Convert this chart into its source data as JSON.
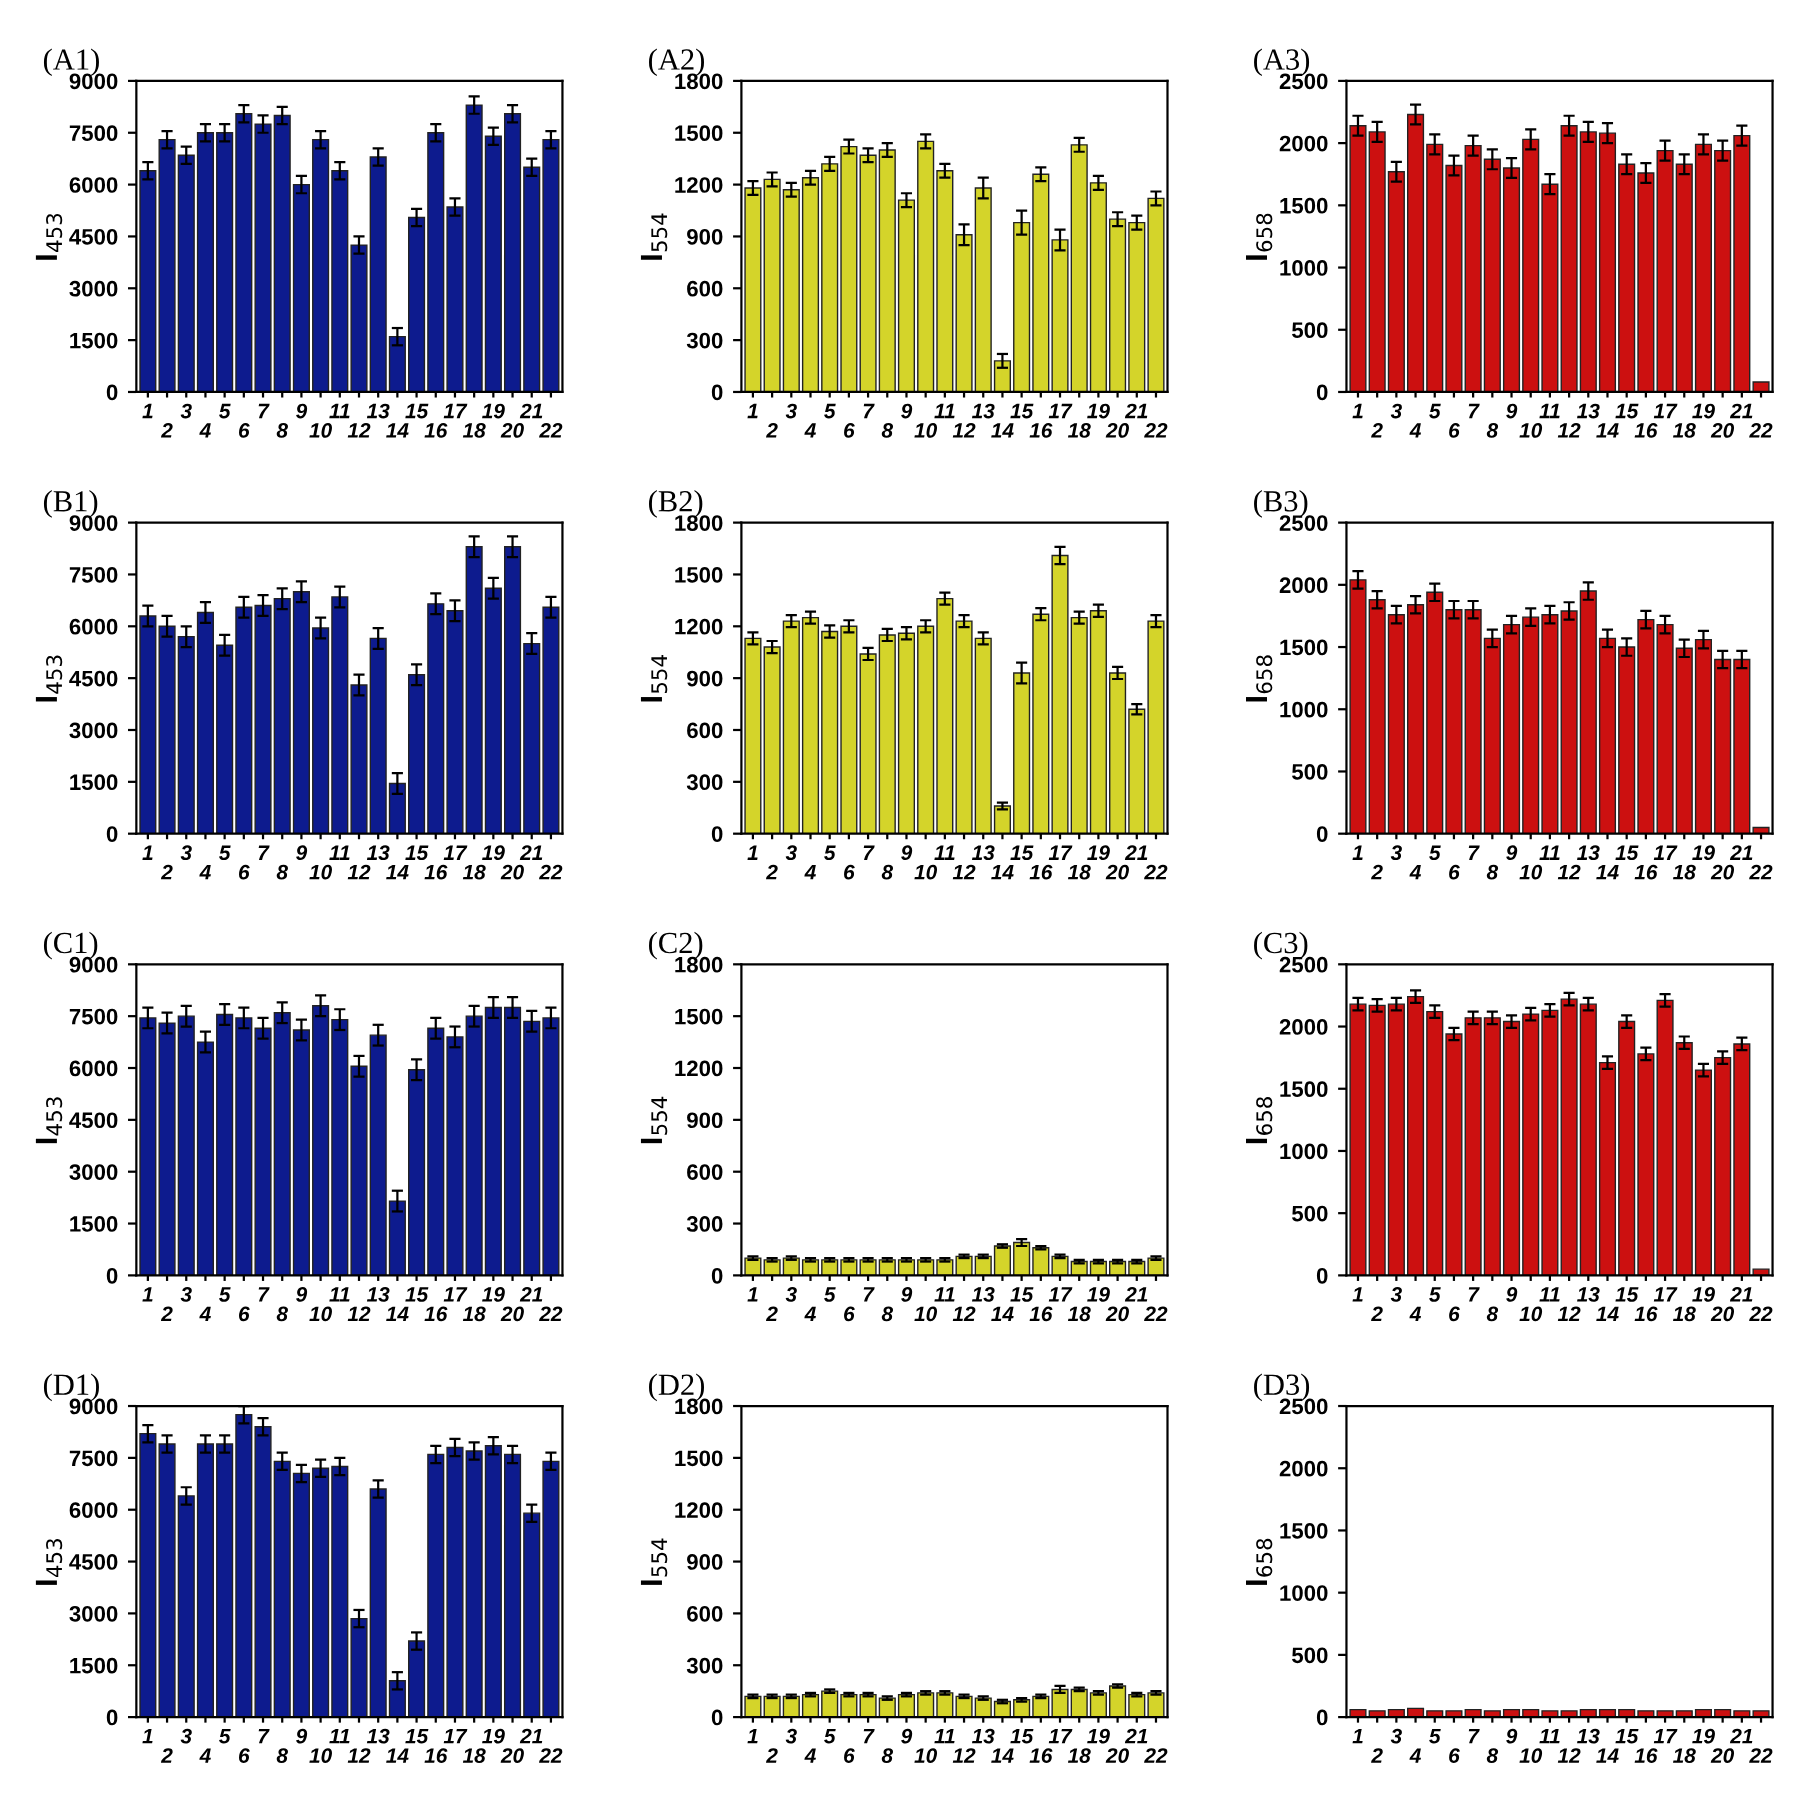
{
  "chart_data": [
    {
      "type": "bar",
      "title": "(A1)",
      "ylabel": "I$_{453}$",
      "categories": [
        "1",
        "2",
        "3",
        "4",
        "5",
        "6",
        "7",
        "8",
        "9",
        "10",
        "11",
        "12",
        "13",
        "14",
        "15",
        "16",
        "17",
        "18",
        "19",
        "20",
        "21",
        "22"
      ],
      "color": "#0d1b8e",
      "ylim": [
        0,
        9000
      ],
      "yticks": [
        0,
        1500,
        3000,
        4500,
        6000,
        7500,
        9000
      ],
      "grid": false,
      "legend": false,
      "values": [
        6400,
        7300,
        6850,
        7500,
        7500,
        8050,
        7750,
        8000,
        6000,
        7300,
        6400,
        4250,
        6800,
        1600,
        5050,
        7500,
        5350,
        8300,
        7400,
        8050,
        6500,
        7300
      ],
      "errors": [
        250,
        250,
        250,
        250,
        250,
        250,
        250,
        250,
        250,
        250,
        250,
        250,
        250,
        250,
        250,
        250,
        250,
        250,
        250,
        250,
        250,
        250
      ]
    },
    {
      "type": "bar",
      "title": "(A2)",
      "ylabel": "I$_{554}$",
      "categories": [
        "1",
        "2",
        "3",
        "4",
        "5",
        "6",
        "7",
        "8",
        "9",
        "10",
        "11",
        "12",
        "13",
        "14",
        "15",
        "16",
        "17",
        "18",
        "19",
        "20",
        "21",
        "22"
      ],
      "color": "#d4d42a",
      "ylim": [
        0,
        1800
      ],
      "yticks": [
        0,
        300,
        600,
        900,
        1200,
        1500,
        1800
      ],
      "grid": false,
      "legend": false,
      "values": [
        1180,
        1230,
        1170,
        1240,
        1320,
        1420,
        1370,
        1400,
        1110,
        1450,
        1280,
        910,
        1180,
        180,
        980,
        1260,
        880,
        1430,
        1210,
        1000,
        980,
        1120
      ],
      "errors": [
        40,
        40,
        40,
        40,
        40,
        40,
        40,
        40,
        40,
        40,
        40,
        60,
        60,
        40,
        70,
        40,
        60,
        40,
        40,
        40,
        40,
        40
      ]
    },
    {
      "type": "bar",
      "title": "(A3)",
      "ylabel": "I$_{658}$",
      "categories": [
        "1",
        "2",
        "3",
        "4",
        "5",
        "6",
        "7",
        "8",
        "9",
        "10",
        "11",
        "12",
        "13",
        "14",
        "15",
        "16",
        "17",
        "18",
        "19",
        "20",
        "21",
        "22"
      ],
      "color": "#cc1010",
      "ylim": [
        0,
        2500
      ],
      "yticks": [
        0,
        500,
        1000,
        1500,
        2000,
        2500
      ],
      "grid": false,
      "legend": false,
      "values": [
        2140,
        2090,
        1770,
        2230,
        1990,
        1820,
        1980,
        1870,
        1800,
        2030,
        1670,
        2140,
        2090,
        2080,
        1830,
        1760,
        1940,
        1830,
        1990,
        1940,
        2060,
        80
      ],
      "errors": [
        80,
        80,
        80,
        80,
        80,
        80,
        80,
        80,
        80,
        80,
        80,
        80,
        80,
        80,
        80,
        80,
        80,
        80,
        80,
        80,
        80,
        null
      ]
    },
    {
      "type": "bar",
      "title": "(B1)",
      "ylabel": "I$_{453}$",
      "categories": [
        "1",
        "2",
        "3",
        "4",
        "5",
        "6",
        "7",
        "8",
        "9",
        "10",
        "11",
        "12",
        "13",
        "14",
        "15",
        "16",
        "17",
        "18",
        "19",
        "20",
        "21",
        "22"
      ],
      "color": "#0d1b8e",
      "ylim": [
        0,
        9000
      ],
      "yticks": [
        0,
        1500,
        3000,
        4500,
        6000,
        7500,
        9000
      ],
      "grid": false,
      "legend": false,
      "values": [
        6300,
        6000,
        5700,
        6400,
        5450,
        6550,
        6600,
        6800,
        7000,
        5950,
        6850,
        4300,
        5650,
        1450,
        4600,
        6650,
        6450,
        8300,
        7100,
        8300,
        5500,
        6550
      ],
      "errors": [
        300,
        300,
        300,
        300,
        300,
        300,
        300,
        300,
        300,
        300,
        300,
        300,
        300,
        300,
        300,
        300,
        300,
        300,
        300,
        300,
        300,
        300
      ]
    },
    {
      "type": "bar",
      "title": "(B2)",
      "ylabel": "I$_{554}$",
      "categories": [
        "1",
        "2",
        "3",
        "4",
        "5",
        "6",
        "7",
        "8",
        "9",
        "10",
        "11",
        "12",
        "13",
        "14",
        "15",
        "16",
        "17",
        "18",
        "19",
        "20",
        "21",
        "22"
      ],
      "color": "#d4d42a",
      "ylim": [
        0,
        1800
      ],
      "yticks": [
        0,
        300,
        600,
        900,
        1200,
        1500,
        1800
      ],
      "grid": false,
      "legend": false,
      "values": [
        1130,
        1080,
        1230,
        1250,
        1170,
        1200,
        1040,
        1150,
        1160,
        1200,
        1360,
        1230,
        1130,
        160,
        930,
        1270,
        1610,
        1250,
        1290,
        930,
        720,
        1230
      ],
      "errors": [
        35,
        35,
        35,
        35,
        35,
        35,
        35,
        35,
        35,
        35,
        35,
        35,
        35,
        20,
        60,
        35,
        50,
        35,
        35,
        35,
        30,
        35
      ]
    },
    {
      "type": "bar",
      "title": "(B3)",
      "ylabel": "I$_{658}$",
      "categories": [
        "1",
        "2",
        "3",
        "4",
        "5",
        "6",
        "7",
        "8",
        "9",
        "10",
        "11",
        "12",
        "13",
        "14",
        "15",
        "16",
        "17",
        "18",
        "19",
        "20",
        "21",
        "22"
      ],
      "color": "#cc1010",
      "ylim": [
        0,
        2500
      ],
      "yticks": [
        0,
        500,
        1000,
        1500,
        2000,
        2500
      ],
      "grid": false,
      "legend": false,
      "values": [
        2040,
        1880,
        1760,
        1840,
        1940,
        1800,
        1800,
        1570,
        1680,
        1740,
        1760,
        1790,
        1950,
        1570,
        1500,
        1720,
        1680,
        1490,
        1560,
        1400,
        1400,
        50
      ],
      "errors": [
        70,
        70,
        70,
        70,
        70,
        70,
        70,
        70,
        70,
        70,
        70,
        70,
        70,
        70,
        70,
        70,
        70,
        70,
        70,
        70,
        70,
        null
      ]
    },
    {
      "type": "bar",
      "title": "(C1)",
      "ylabel": "I$_{453}$",
      "categories": [
        "1",
        "2",
        "3",
        "4",
        "5",
        "6",
        "7",
        "8",
        "9",
        "10",
        "11",
        "12",
        "13",
        "14",
        "15",
        "16",
        "17",
        "18",
        "19",
        "20",
        "21",
        "22"
      ],
      "color": "#0d1b8e",
      "ylim": [
        0,
        9000
      ],
      "yticks": [
        0,
        1500,
        3000,
        4500,
        6000,
        7500,
        9000
      ],
      "grid": false,
      "legend": false,
      "values": [
        7450,
        7300,
        7500,
        6750,
        7550,
        7450,
        7150,
        7600,
        7100,
        7800,
        7400,
        6050,
        6950,
        2150,
        5950,
        7150,
        6900,
        7500,
        7750,
        7750,
        7350,
        7450
      ],
      "errors": [
        300,
        300,
        300,
        300,
        300,
        300,
        300,
        300,
        300,
        300,
        300,
        300,
        300,
        300,
        300,
        300,
        300,
        300,
        300,
        300,
        300,
        300
      ]
    },
    {
      "type": "bar",
      "title": "(C2)",
      "ylabel": "I$_{554}$",
      "categories": [
        "1",
        "2",
        "3",
        "4",
        "5",
        "6",
        "7",
        "8",
        "9",
        "10",
        "11",
        "12",
        "13",
        "14",
        "15",
        "16",
        "17",
        "18",
        "19",
        "20",
        "21",
        "22"
      ],
      "color": "#d4d42a",
      "ylim": [
        0,
        1800
      ],
      "yticks": [
        0,
        300,
        600,
        900,
        1200,
        1500,
        1800
      ],
      "grid": false,
      "legend": false,
      "values": [
        100,
        90,
        100,
        90,
        90,
        90,
        90,
        90,
        90,
        90,
        90,
        110,
        110,
        170,
        190,
        160,
        110,
        80,
        80,
        80,
        80,
        100
      ],
      "errors": [
        10,
        10,
        10,
        10,
        10,
        10,
        10,
        10,
        10,
        10,
        10,
        10,
        10,
        10,
        20,
        10,
        10,
        10,
        10,
        10,
        10,
        10
      ]
    },
    {
      "type": "bar",
      "title": "(C3)",
      "ylabel": "I$_{658}$",
      "categories": [
        "1",
        "2",
        "3",
        "4",
        "5",
        "6",
        "7",
        "8",
        "9",
        "10",
        "11",
        "12",
        "13",
        "14",
        "15",
        "16",
        "17",
        "18",
        "19",
        "20",
        "21",
        "22"
      ],
      "color": "#cc1010",
      "ylim": [
        0,
        2500
      ],
      "yticks": [
        0,
        500,
        1000,
        1500,
        2000,
        2500
      ],
      "grid": false,
      "legend": false,
      "values": [
        2180,
        2170,
        2180,
        2240,
        2120,
        1940,
        2070,
        2070,
        2040,
        2100,
        2130,
        2220,
        2180,
        1710,
        2040,
        1780,
        2210,
        1870,
        1650,
        1750,
        1860,
        50
      ],
      "errors": [
        50,
        50,
        50,
        50,
        50,
        50,
        50,
        50,
        50,
        50,
        50,
        50,
        50,
        50,
        50,
        50,
        50,
        50,
        50,
        50,
        50,
        null
      ]
    },
    {
      "type": "bar",
      "title": "(D1)",
      "ylabel": "I$_{453}$",
      "categories": [
        "1",
        "2",
        "3",
        "4",
        "5",
        "6",
        "7",
        "8",
        "9",
        "10",
        "11",
        "12",
        "13",
        "14",
        "15",
        "16",
        "17",
        "18",
        "19",
        "20",
        "21",
        "22"
      ],
      "color": "#0d1b8e",
      "ylim": [
        0,
        9000
      ],
      "yticks": [
        0,
        1500,
        3000,
        4500,
        6000,
        7500,
        9000
      ],
      "grid": false,
      "legend": false,
      "values": [
        8200,
        7900,
        6400,
        7900,
        7900,
        8750,
        8400,
        7400,
        7050,
        7200,
        7250,
        2850,
        6600,
        1050,
        2200,
        7600,
        7800,
        7700,
        7850,
        7600,
        5900,
        7400
      ],
      "errors": [
        250,
        250,
        250,
        250,
        250,
        250,
        250,
        250,
        250,
        250,
        250,
        250,
        250,
        250,
        250,
        250,
        250,
        250,
        250,
        250,
        250,
        250
      ]
    },
    {
      "type": "bar",
      "title": "(D2)",
      "ylabel": "I$_{554}$",
      "categories": [
        "1",
        "2",
        "3",
        "4",
        "5",
        "6",
        "7",
        "8",
        "9",
        "10",
        "11",
        "12",
        "13",
        "14",
        "15",
        "16",
        "17",
        "18",
        "19",
        "20",
        "21",
        "22"
      ],
      "color": "#d4d42a",
      "ylim": [
        0,
        1800
      ],
      "yticks": [
        0,
        300,
        600,
        900,
        1200,
        1500,
        1800
      ],
      "grid": false,
      "legend": false,
      "values": [
        120,
        120,
        120,
        130,
        150,
        130,
        130,
        110,
        130,
        140,
        140,
        120,
        110,
        90,
        100,
        120,
        160,
        160,
        140,
        180,
        130,
        140
      ],
      "errors": [
        10,
        10,
        10,
        10,
        10,
        10,
        10,
        10,
        10,
        10,
        10,
        10,
        10,
        10,
        10,
        10,
        20,
        10,
        10,
        10,
        10,
        10
      ]
    },
    {
      "type": "bar",
      "title": "(D3)",
      "ylabel": "I$_{658}$",
      "categories": [
        "1",
        "2",
        "3",
        "4",
        "5",
        "6",
        "7",
        "8",
        "9",
        "10",
        "11",
        "12",
        "13",
        "14",
        "15",
        "16",
        "17",
        "18",
        "19",
        "20",
        "21",
        "22"
      ],
      "color": "#cc1010",
      "ylim": [
        0,
        2500
      ],
      "yticks": [
        0,
        500,
        1000,
        1500,
        2000,
        2500
      ],
      "grid": false,
      "legend": false,
      "values": [
        60,
        50,
        60,
        70,
        50,
        50,
        60,
        50,
        60,
        60,
        50,
        50,
        60,
        60,
        60,
        50,
        50,
        50,
        60,
        60,
        50,
        50
      ]
    }
  ]
}
